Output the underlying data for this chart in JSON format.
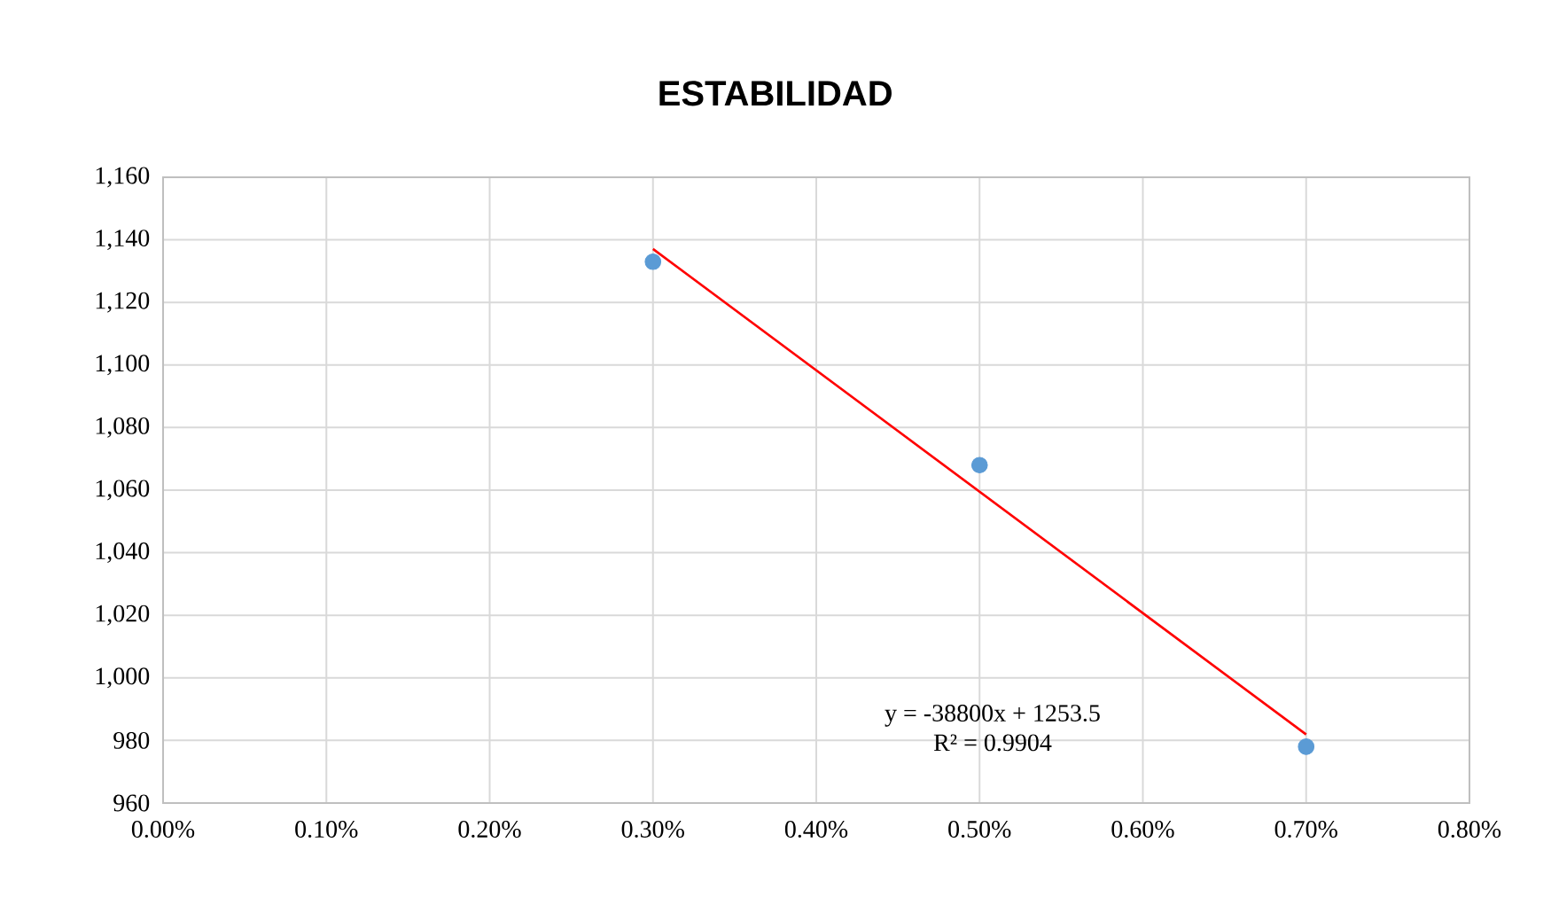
{
  "chart_data": {
    "type": "scatter",
    "title": "ESTABILIDAD",
    "series": [
      {
        "marker": "circle",
        "color": "#5b9bd5",
        "x": [
          0.003,
          0.005,
          0.007
        ],
        "values": [
          1133,
          1068,
          978
        ]
      },
      {
        "type": "line",
        "marker": "none",
        "color": "#ff0000",
        "x": [
          0.003,
          0.007
        ],
        "values": [
          1137.1,
          981.9
        ]
      }
    ],
    "xlim": [
      0,
      0.008
    ],
    "xticks": [
      {
        "value": 0,
        "label": "0.00%"
      },
      {
        "value": 0.001,
        "label": "0.10%"
      },
      {
        "value": 0.002,
        "label": "0.20%"
      },
      {
        "value": 0.003,
        "label": "0.30%"
      },
      {
        "value": 0.004,
        "label": "0.40%"
      },
      {
        "value": 0.005,
        "label": "0.50%"
      },
      {
        "value": 0.006,
        "label": "0.60%"
      },
      {
        "value": 0.007,
        "label": "0.70%"
      },
      {
        "value": 0.008,
        "label": "0.80%"
      }
    ],
    "ylim": [
      960,
      1160
    ],
    "yticks": [
      {
        "value": 960,
        "label": "960"
      },
      {
        "value": 980,
        "label": "980"
      },
      {
        "value": 1000,
        "label": "1,000"
      },
      {
        "value": 1020,
        "label": "1,020"
      },
      {
        "value": 1040,
        "label": "1,040"
      },
      {
        "value": 1060,
        "label": "1,060"
      },
      {
        "value": 1080,
        "label": "1,080"
      },
      {
        "value": 1100,
        "label": "1,100"
      },
      {
        "value": 1120,
        "label": "1,120"
      },
      {
        "value": 1140,
        "label": "1,140"
      },
      {
        "value": 1160,
        "label": "1,160"
      }
    ],
    "grid": true,
    "annotations": [
      "y = -38800x + 1253.5",
      "R² = 0.9904"
    ]
  }
}
